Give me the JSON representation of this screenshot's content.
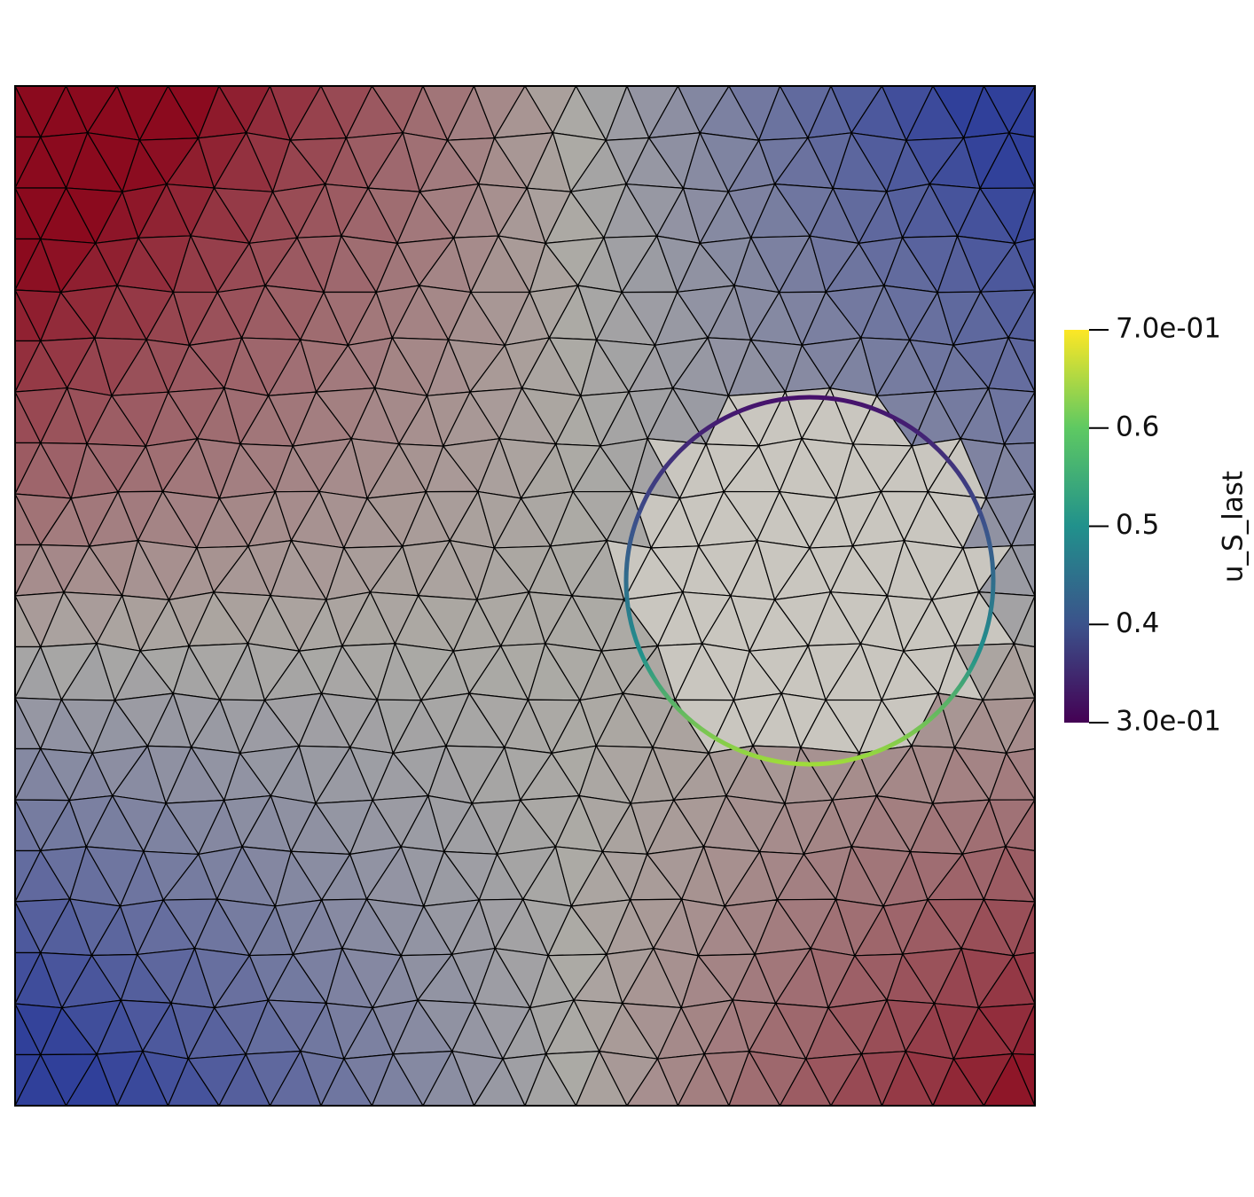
{
  "colorbar": {
    "title": "u_S_last",
    "range": [
      0.3,
      0.7
    ],
    "ticks": [
      {
        "value": 0.7,
        "label": "7.0e-01"
      },
      0.6,
      0.5,
      0.4,
      {
        "value": 0.3,
        "label": "3.0e-01"
      }
    ]
  }
}
